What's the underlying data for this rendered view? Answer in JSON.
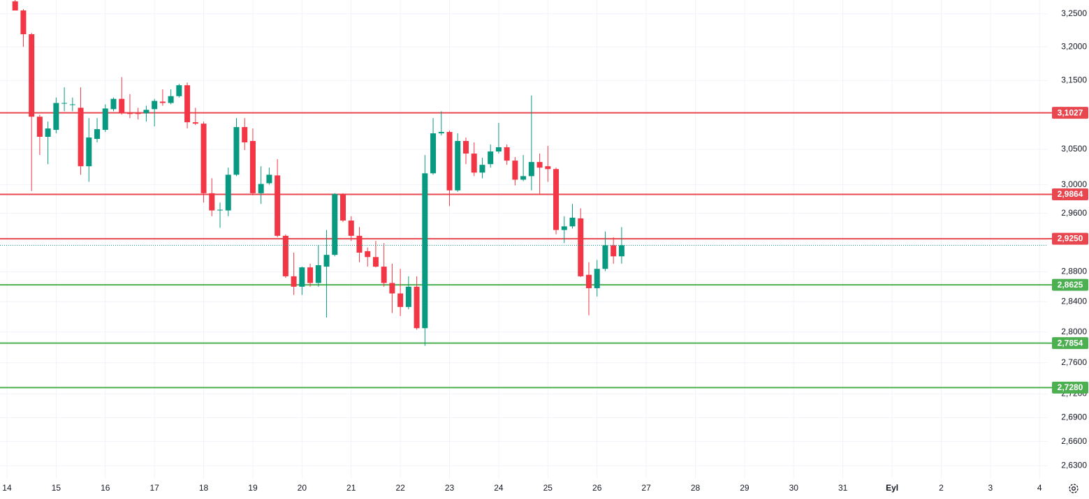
{
  "chart_data": {
    "type": "candlestick",
    "log_scale": true,
    "grid": true,
    "up_color": "#089981",
    "down_color": "#f23645",
    "ylim": [
      2.614,
      3.271
    ],
    "yticks": [
      {
        "value": 3.25,
        "label": "3,2500"
      },
      {
        "value": 3.2,
        "label": "3,2000"
      },
      {
        "value": 3.15,
        "label": "3,1500"
      },
      {
        "value": 3.05,
        "label": "3,0500"
      },
      {
        "value": 3.0,
        "label": "3,0000"
      },
      {
        "value": 2.96,
        "label": "2,9600"
      },
      {
        "value": 2.88,
        "label": "2,8800"
      },
      {
        "value": 2.84,
        "label": "2,8400"
      },
      {
        "value": 2.8,
        "label": "2,8000"
      },
      {
        "value": 2.76,
        "label": "2,7600"
      },
      {
        "value": 2.72,
        "label": "2,7200"
      },
      {
        "value": 2.69,
        "label": "2,6900"
      },
      {
        "value": 2.66,
        "label": "2,6600"
      },
      {
        "value": 2.63,
        "label": "2,6300"
      }
    ],
    "xlim": [
      -3.4,
      508
    ],
    "xticks": [
      {
        "value": 0,
        "label": "14"
      },
      {
        "value": 24,
        "label": "15"
      },
      {
        "value": 48,
        "label": "16"
      },
      {
        "value": 72,
        "label": "17"
      },
      {
        "value": 96,
        "label": "18"
      },
      {
        "value": 120,
        "label": "19"
      },
      {
        "value": 144,
        "label": "20"
      },
      {
        "value": 168,
        "label": "21"
      },
      {
        "value": 192,
        "label": "22"
      },
      {
        "value": 216,
        "label": "23"
      },
      {
        "value": 240,
        "label": "24"
      },
      {
        "value": 264,
        "label": "25"
      },
      {
        "value": 288,
        "label": "26"
      },
      {
        "value": 312,
        "label": "27"
      },
      {
        "value": 336,
        "label": "28"
      },
      {
        "value": 360,
        "label": "29"
      },
      {
        "value": 384,
        "label": "30"
      },
      {
        "value": 408,
        "label": "31"
      },
      {
        "value": 432,
        "label": "Eyl"
      },
      {
        "value": 456,
        "label": "2"
      },
      {
        "value": 480,
        "label": "3"
      },
      {
        "value": 504,
        "label": "4"
      }
    ],
    "levels": [
      {
        "value": 3.1027,
        "label": "3,1027",
        "color": "#e8474f"
      },
      {
        "value": 2.9864,
        "label": "2,9864",
        "color": "#e8474f"
      },
      {
        "value": 2.925,
        "label": "2,9250",
        "color": "#e8474f"
      },
      {
        "value": 2.8625,
        "label": "2,8625",
        "color": "#4caf50"
      },
      {
        "value": 2.7854,
        "label": "2,7854",
        "color": "#4caf50"
      },
      {
        "value": 2.728,
        "label": "2,7280",
        "color": "#4caf50"
      }
    ],
    "x": [
      4,
      8,
      12,
      16,
      20,
      24,
      28,
      32,
      36,
      40,
      44,
      48,
      52,
      56,
      60,
      64,
      68,
      72,
      76,
      80,
      84,
      88,
      92,
      96,
      100,
      104,
      108,
      112,
      116,
      120,
      124,
      128,
      132,
      136,
      140,
      144,
      148,
      152,
      156,
      160,
      164,
      168,
      172,
      176,
      180,
      184,
      188,
      192,
      196,
      200,
      204,
      208,
      212,
      216,
      220,
      224,
      228,
      232,
      236,
      240,
      244,
      248,
      252,
      256,
      260,
      264,
      268,
      272,
      276,
      280,
      284,
      288,
      292,
      296,
      300
    ],
    "open": [
      3.269,
      3.255,
      3.219,
      3.097,
      3.068,
      3.078,
      3.116,
      3.114,
      3.11,
      3.026,
      3.065,
      3.078,
      3.108,
      3.123,
      3.103,
      3.102,
      3.102,
      3.108,
      3.119,
      3.117,
      3.127,
      3.143,
      3.089,
      3.087,
      2.988,
      2.964,
      2.964,
      3.014,
      3.082,
      3.062,
      2.988,
      3.002,
      3.013,
      2.929,
      2.874,
      2.86,
      2.886,
      2.865,
      2.887,
      2.903,
      2.987,
      2.95,
      2.929,
      2.908,
      2.9,
      2.887,
      2.865,
      2.851,
      2.833,
      2.86,
      2.805,
      3.016,
      3.073,
      3.075,
      2.992,
      3.062,
      3.044,
      3.017,
      3.029,
      3.047,
      3.053,
      3.034,
      3.007,
      3.012,
      3.032,
      3.026,
      3.022,
      2.937,
      2.942,
      2.953,
      2.876,
      2.858,
      2.884,
      2.916,
      2.901
    ],
    "high": [
      3.271,
      3.257,
      3.221,
      3.1,
      3.09,
      3.125,
      3.14,
      3.125,
      3.14,
      3.095,
      3.095,
      3.115,
      3.125,
      3.155,
      3.13,
      3.11,
      3.113,
      3.123,
      3.137,
      3.137,
      3.145,
      3.147,
      3.11,
      3.09,
      3.009,
      2.975,
      3.024,
      3.095,
      3.095,
      3.08,
      3.026,
      3.024,
      3.036,
      2.931,
      2.906,
      2.887,
      2.891,
      2.916,
      2.937,
      2.988,
      2.988,
      2.956,
      2.941,
      2.913,
      2.922,
      2.919,
      2.891,
      2.884,
      2.874,
      2.874,
      3.042,
      3.095,
      3.105,
      3.077,
      3.073,
      3.067,
      3.06,
      3.038,
      3.057,
      3.088,
      3.057,
      3.039,
      3.042,
      3.128,
      3.044,
      3.055,
      3.024,
      2.956,
      2.973,
      2.967,
      2.893,
      2.896,
      2.935,
      2.927,
      2.941
    ],
    "low": [
      3.255,
      3.2,
      2.991,
      3.042,
      3.029,
      3.073,
      3.105,
      3.105,
      3.014,
      3.004,
      3.06,
      3.075,
      3.105,
      3.1,
      3.095,
      3.093,
      3.09,
      3.083,
      3.113,
      3.115,
      3.125,
      3.08,
      3.085,
      2.975,
      2.956,
      2.94,
      2.956,
      3.012,
      3.049,
      2.985,
      2.973,
      3.0,
      2.927,
      2.872,
      2.849,
      2.849,
      2.86,
      2.86,
      2.819,
      2.901,
      2.948,
      2.922,
      2.893,
      2.887,
      2.886,
      2.86,
      2.825,
      2.821,
      2.83,
      2.803,
      2.782,
      3.014,
      3.07,
      2.97,
      2.99,
      3.029,
      3.012,
      3.009,
      3.024,
      3.044,
      3.028,
      2.999,
      3.005,
      2.992,
      2.987,
      3.004,
      2.931,
      2.919,
      2.939,
      2.873,
      2.822,
      2.847,
      2.881,
      2.891,
      2.891
    ],
    "close": [
      3.255,
      3.219,
      3.097,
      3.068,
      3.08,
      3.117,
      3.117,
      3.115,
      3.026,
      3.067,
      3.079,
      3.109,
      3.123,
      3.102,
      3.101,
      3.101,
      3.107,
      3.12,
      3.117,
      3.127,
      3.143,
      3.089,
      3.087,
      2.988,
      2.964,
      2.965,
      3.014,
      3.082,
      3.06,
      2.988,
      3.001,
      3.014,
      2.929,
      2.874,
      2.86,
      2.886,
      2.865,
      2.889,
      2.903,
      2.987,
      2.95,
      2.929,
      2.906,
      2.9,
      2.887,
      2.865,
      2.851,
      2.833,
      2.86,
      2.805,
      3.016,
      3.073,
      3.075,
      2.992,
      3.062,
      3.044,
      3.017,
      3.028,
      3.047,
      3.053,
      3.034,
      3.007,
      3.012,
      3.032,
      3.024,
      3.022,
      2.937,
      2.942,
      2.954,
      2.874,
      2.858,
      2.884,
      2.916,
      2.901,
      2.916
    ]
  }
}
